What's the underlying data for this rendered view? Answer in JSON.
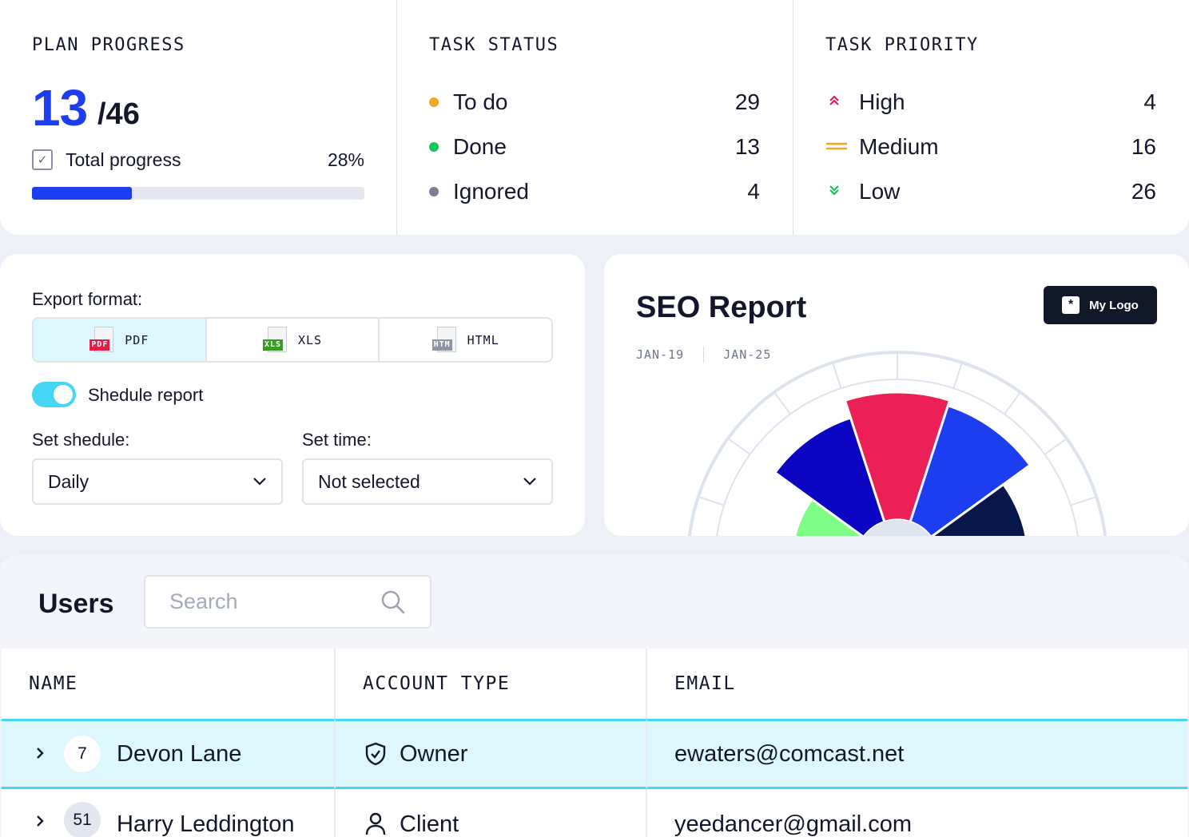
{
  "plan_progress": {
    "title": "PLAN PROGRESS",
    "done": "13",
    "total": "/46",
    "progress_label": "Total progress",
    "progress_percent_text": "28%",
    "progress_fraction": 0.3
  },
  "task_status": {
    "title": "TASK STATUS",
    "items": [
      {
        "label": "To do",
        "count": "29",
        "color": "#f5a524"
      },
      {
        "label": "Done",
        "count": "13",
        "color": "#12c65a"
      },
      {
        "label": "Ignored",
        "count": "4",
        "color": "#7a8090"
      }
    ]
  },
  "task_priority": {
    "title": "TASK PRIORITY",
    "items": [
      {
        "label": "High",
        "count": "4",
        "icon": "chevrons-up-icon",
        "color": "#e8205a"
      },
      {
        "label": "Medium",
        "count": "16",
        "icon": "equals-icon",
        "color": "#f5a524"
      },
      {
        "label": "Low",
        "count": "26",
        "icon": "chevrons-down-icon",
        "color": "#12c65a"
      }
    ]
  },
  "export": {
    "format_label": "Export format:",
    "formats": [
      {
        "label": "PDF",
        "tag": "PDF",
        "color": "#e11d48",
        "active": true
      },
      {
        "label": "XLS",
        "tag": "XLS",
        "color": "#3a9d23",
        "active": false
      },
      {
        "label": "HTML",
        "tag": "HTM",
        "color": "#8d94a3",
        "active": false
      }
    ],
    "schedule_toggle_label": "Shedule report",
    "set_schedule_label": "Set shedule:",
    "schedule_value": "Daily",
    "set_time_label": "Set time:",
    "time_value": "Not selected"
  },
  "seo": {
    "title": "SEO Report",
    "logo_label": "My Logo",
    "date_from": "JAN-19",
    "date_to": "JAN-25"
  },
  "chart_data": {
    "type": "polar-area",
    "title": "SEO Report",
    "segments": [
      {
        "value": 0.58,
        "color": "#7dfc86"
      },
      {
        "value": 0.83,
        "color": "#0a06c4"
      },
      {
        "value": 0.93,
        "color": "#ec1f57"
      },
      {
        "value": 0.9,
        "color": "#1c3ef0"
      },
      {
        "value": 0.72,
        "color": "#07174a"
      }
    ]
  },
  "users": {
    "title": "Users",
    "search_placeholder": "Search",
    "columns": [
      "NAME",
      "ACCOUNT TYPE",
      "EMAIL"
    ],
    "rows": [
      {
        "badge": "7",
        "name": "Devon Lane",
        "account": "Owner",
        "account_icon": "shield-check-icon",
        "email": "ewaters@comcast.net",
        "selected": true
      },
      {
        "badge": "51",
        "name": "Harry Leddington",
        "account": "Client",
        "account_icon": "user-icon",
        "email": "yeedancer@gmail.com",
        "selected": false
      }
    ]
  }
}
